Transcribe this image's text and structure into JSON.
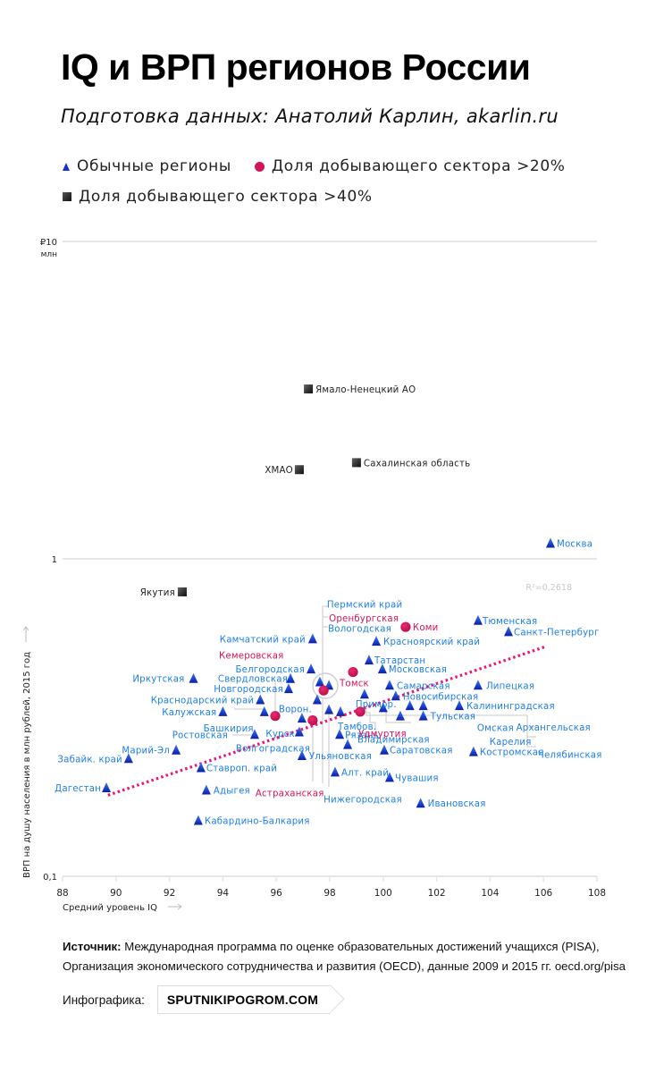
{
  "header": {
    "title": "IQ и ВРП регионов России",
    "subtitle": "Подготовка данных: Анатолий Карлин, akarlin.ru"
  },
  "legend": {
    "regular": "Обычные регионы",
    "mining20": "Доля добывающего сектора >20%",
    "mining40": "Доля добывающего сектора >40%"
  },
  "colors": {
    "regular": "#1a3fd6",
    "regular_label": "#1f7fe0",
    "mining20": "#d3145a",
    "mining40": "#222222",
    "trend": "#e8177a",
    "grid": "#e6e6e6"
  },
  "chart_data": {
    "type": "scatter",
    "title": "IQ и ВРП регионов России",
    "xlabel": "Средний уровень IQ",
    "ylabel": "ВРП на душу населения в млн рублей, 2015 год",
    "xlim": [
      88,
      108
    ],
    "ylim": [
      0.1,
      10
    ],
    "yscale": "log",
    "x_ticks": [
      "88",
      "90",
      "92",
      "94",
      "96",
      "98",
      "100",
      "102",
      "104",
      "106",
      "108"
    ],
    "y_ticks": [
      {
        "value": 10,
        "label": "₽10",
        "sublabel": "млн"
      },
      {
        "value": 1,
        "label": "1",
        "sublabel": ""
      },
      {
        "value": 0.1,
        "label": "0,1",
        "sublabel": ""
      }
    ],
    "grid": true,
    "legend_position": "top",
    "trend": {
      "type": "log-linear",
      "x": [
        89.7,
        106.1
      ],
      "y": [
        0.18,
        0.53
      ],
      "r2_label": "R²=0,2618"
    },
    "series": [
      {
        "name": "Обычные регионы",
        "marker": "triangle",
        "points": [
          {
            "label": "Москва",
            "iq": 106.26,
            "grp": 1.12
          },
          {
            "label": "Тюменская",
            "iq": 103.55,
            "grp": 0.64
          },
          {
            "label": "Санкт-Петербург",
            "iq": 104.69,
            "grp": 0.59
          },
          {
            "label": "Красноярский край",
            "iq": 99.74,
            "grp": 0.55
          },
          {
            "label": "Татарстан",
            "iq": 99.47,
            "grp": 0.48
          },
          {
            "label": "Московская",
            "iq": 99.97,
            "grp": 0.45
          },
          {
            "label": "Липецкая",
            "iq": 103.55,
            "grp": 0.4
          },
          {
            "label": "Самарская",
            "iq": 100.24,
            "grp": 0.4
          },
          {
            "label": "Новосибирская",
            "iq": 100.47,
            "grp": 0.37
          },
          {
            "label": "Калининградская",
            "iq": 102.85,
            "grp": 0.345
          },
          {
            "label": "Примор.",
            "iq": 99.3,
            "grp": 0.375
          },
          {
            "label": "Тульская",
            "iq": 101.5,
            "grp": 0.32
          },
          {
            "label": "Камчатский край",
            "iq": 97.36,
            "grp": 0.56
          },
          {
            "label": "Белгородская",
            "iq": 97.3,
            "grp": 0.45
          },
          {
            "label": "Свердловская",
            "iq": 96.53,
            "grp": 0.42
          },
          {
            "label": "Новгородская",
            "iq": 96.46,
            "grp": 0.39
          },
          {
            "label": "Иркутская",
            "iq": 92.9,
            "grp": 0.42
          },
          {
            "label": "Краснодарский край",
            "iq": 95.4,
            "grp": 0.36
          },
          {
            "label": "Калужская",
            "iq": 94.0,
            "grp": 0.33
          },
          {
            "label": "Башкирия",
            "iq": 95.55,
            "grp": 0.33
          },
          {
            "label": "Ворон.",
            "iq": 97.53,
            "grp": 0.36
          },
          {
            "label": "Курск",
            "iq": 96.96,
            "grp": 0.315
          },
          {
            "label": "Пермский край",
            "iq": 97.63,
            "grp": 0.41
          },
          {
            "label": "Вологодская",
            "iq": 97.97,
            "grp": 0.4
          },
          {
            "label": "Ростовская",
            "iq": 95.19,
            "grp": 0.28
          },
          {
            "label": "Волгоградская",
            "iq": 96.86,
            "grp": 0.285
          },
          {
            "label": "Ульяновская",
            "iq": 96.96,
            "grp": 0.24
          },
          {
            "label": "Марий-Эл",
            "iq": 92.25,
            "grp": 0.25
          },
          {
            "label": "Забайк. край",
            "iq": 90.47,
            "grp": 0.235
          },
          {
            "label": "Дагестан",
            "iq": 89.64,
            "grp": 0.19
          },
          {
            "label": "Ставроп. край",
            "iq": 93.18,
            "grp": 0.22
          },
          {
            "label": "Адыгея",
            "iq": 93.38,
            "grp": 0.187
          },
          {
            "label": "Кабардино-Балкария",
            "iq": 93.08,
            "grp": 0.15
          },
          {
            "label": "Нижегородская",
            "iq": 97.97,
            "grp": 0.335
          },
          {
            "label": "Тамбов.",
            "iq": 98.4,
            "grp": 0.33
          },
          {
            "label": "Рязань",
            "iq": 98.37,
            "grp": 0.28
          },
          {
            "label": "Владимирская",
            "iq": 98.67,
            "grp": 0.26
          },
          {
            "label": "Саратовская",
            "iq": 100.04,
            "grp": 0.25
          },
          {
            "label": "Алт. край",
            "iq": 98.2,
            "grp": 0.213
          },
          {
            "label": "Чувашия",
            "iq": 100.24,
            "grp": 0.205
          },
          {
            "label": "Ивановская",
            "iq": 101.4,
            "grp": 0.17
          },
          {
            "label": "Костромская",
            "iq": 103.38,
            "grp": 0.247
          },
          {
            "label": "Омская",
            "iq": 100.64,
            "grp": 0.32
          },
          {
            "label": "Архангельская",
            "iq": 101.5,
            "grp": 0.345
          },
          {
            "label": "Карелия",
            "iq": 101.0,
            "grp": 0.345
          },
          {
            "label": "Челябинская",
            "iq": 100.0,
            "grp": 0.34
          }
        ]
      },
      {
        "name": "Доля добывающего сектора >20%",
        "marker": "circle",
        "points": [
          {
            "label": "Коми",
            "iq": 100.84,
            "grp": 0.61
          },
          {
            "label": "Томск",
            "iq": 98.87,
            "grp": 0.44
          },
          {
            "label": "Оренбургская",
            "iq": 97.77,
            "grp": 0.385
          },
          {
            "label": "Кемеровская",
            "iq": 95.96,
            "grp": 0.32
          },
          {
            "label": "Астраханская",
            "iq": 97.36,
            "grp": 0.31
          },
          {
            "label": "Удмуртия",
            "iq": 99.14,
            "grp": 0.33
          }
        ]
      },
      {
        "name": "Доля добывающего сектора >40%",
        "marker": "square",
        "points": [
          {
            "label": "Ямало-Ненецкий АО",
            "iq": 97.2,
            "grp": 3.43
          },
          {
            "label": "Сахалинская область",
            "iq": 99.0,
            "grp": 2.01
          },
          {
            "label": "ХМАО",
            "iq": 96.86,
            "grp": 1.91
          },
          {
            "label": "Якутия",
            "iq": 92.48,
            "grp": 0.787
          }
        ]
      }
    ]
  },
  "footer": {
    "source_label": "Источник:",
    "source_line1": " Международная программа по оценке образовательных достижений учащихся (PISA),",
    "source_line2": "Организация экономического сотрудничества и развития (OECD), данные 2009 и 2015 гг. oecd.org/pisa",
    "infographic_label": "Инфографика:",
    "brand": "SPUTNIKIPOGROM.COM"
  }
}
